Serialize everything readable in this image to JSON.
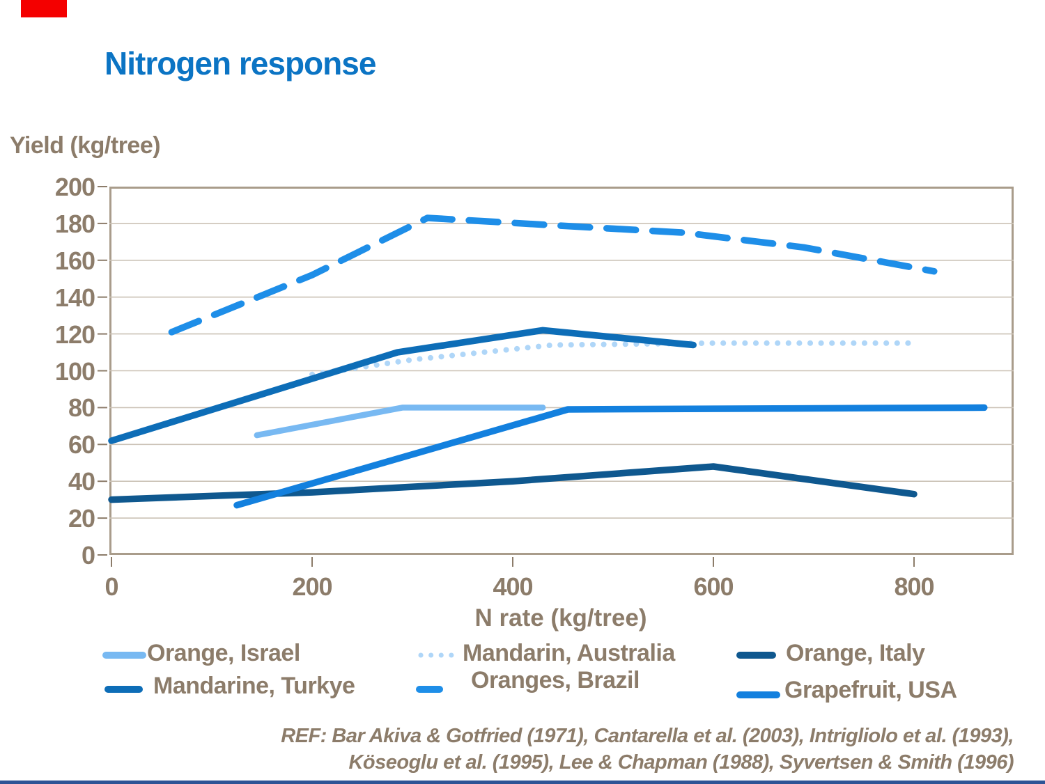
{
  "slide": {
    "title": "Nitrogen response",
    "ref_line1": "REF: Bar Akiva & Gotfried  (1971), Cantarella et al. (2003), Intrigliolo et al. (1993),",
    "ref_line2": "Köseoglu et al. (1995), Lee & Chapman (1988), Syvertsen & Smith (1996)"
  },
  "colors": {
    "title_blue": "#0b74c4",
    "axis_text_brown": "#8c7c6a",
    "gridline": "#cbc2b6",
    "plot_border": "#a99c8b",
    "bottom_bar": "#2e5496",
    "top_red_mark": "#f40000"
  },
  "chart_data": {
    "type": "line",
    "title": "Nitrogen response",
    "xlabel": "N rate (kg/tree)",
    "ylabel": "Yield (kg/tree)",
    "xlim": [
      0,
      900
    ],
    "ylim": [
      0,
      200
    ],
    "x_ticks": [
      0,
      200,
      400,
      600,
      800
    ],
    "y_ticks": [
      0,
      20,
      40,
      60,
      80,
      100,
      120,
      140,
      160,
      180,
      200
    ],
    "grid": "horizontal",
    "legend_position": "bottom",
    "series": [
      {
        "name": "Orange, Israel",
        "style": "solid",
        "color": "#78b9f2",
        "points": [
          [
            145,
            65
          ],
          [
            290,
            80
          ],
          [
            430,
            80
          ]
        ]
      },
      {
        "name": "Mandarin, Australia",
        "style": "dotted",
        "color": "#afd6f8",
        "points": [
          [
            200,
            98
          ],
          [
            300,
            106
          ],
          [
            440,
            114
          ],
          [
            600,
            115
          ],
          [
            800,
            115
          ]
        ]
      },
      {
        "name": "Orange, Italy",
        "style": "solid",
        "color": "#0f588f",
        "points": [
          [
            0,
            30
          ],
          [
            200,
            34
          ],
          [
            400,
            40
          ],
          [
            600,
            48
          ],
          [
            800,
            33
          ]
        ]
      },
      {
        "name": "Mandarine, Turkye",
        "style": "solid",
        "color": "#0d6db7",
        "points": [
          [
            0,
            62
          ],
          [
            285,
            110
          ],
          [
            430,
            122
          ],
          [
            580,
            114
          ]
        ]
      },
      {
        "name": "Oranges, Brazil",
        "style": "dashed",
        "color": "#1e8ee8",
        "points": [
          [
            60,
            121
          ],
          [
            200,
            152
          ],
          [
            315,
            183
          ],
          [
            440,
            179
          ],
          [
            570,
            175
          ],
          [
            690,
            167
          ],
          [
            820,
            154
          ]
        ]
      },
      {
        "name": "Grapefruit, USA",
        "style": "solid",
        "color": "#1380de",
        "points": [
          [
            125,
            27
          ],
          [
            455,
            79
          ],
          [
            870,
            80
          ]
        ]
      }
    ]
  },
  "legend": {
    "items": [
      {
        "label": "Orange, Israel",
        "series": 0
      },
      {
        "label": "Mandarin, Australia",
        "series": 1
      },
      {
        "label": "Orange, Italy",
        "series": 2
      },
      {
        "label": "Mandarine, Turkye",
        "series": 3
      },
      {
        "label": "Oranges, Brazil",
        "series": 4
      },
      {
        "label": "Grapefruit, USA",
        "series": 5
      }
    ]
  }
}
